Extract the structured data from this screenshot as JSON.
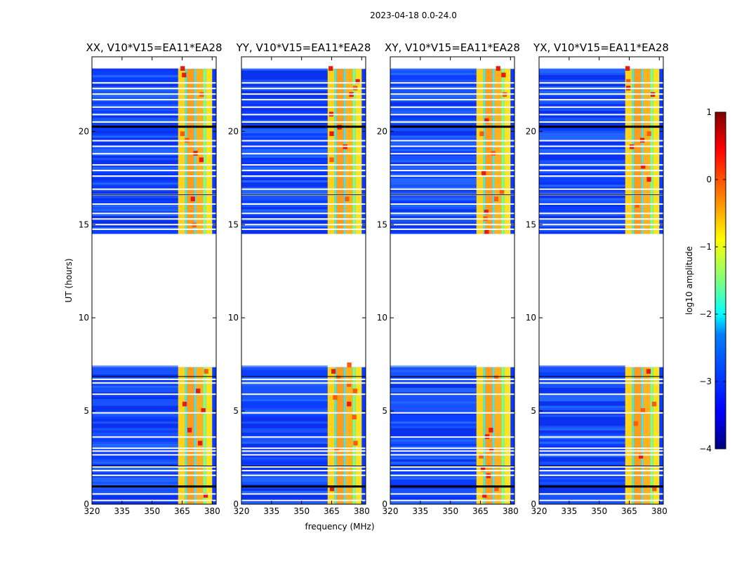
{
  "figure_title": "2023-04-18 0.0-24.0",
  "colors": {
    "background": "#ffffff",
    "jet_stops": [
      "#00007f",
      "#0000ff",
      "#007fff",
      "#00ffff",
      "#7fff7f",
      "#ffff00",
      "#ff7f00",
      "#ff0000",
      "#7f0000"
    ]
  },
  "chart_data": [
    {
      "type": "heatmap",
      "title": "XX, V10*V15=EA11*EA28",
      "xlabel": "",
      "ylabel": "UT (hours)",
      "xlim": [
        320,
        382
      ],
      "ylim": [
        0,
        24
      ],
      "xticks": [
        "320",
        "335",
        "350",
        "365",
        "380"
      ],
      "yticks": [
        "0",
        "5",
        "10",
        "15",
        "20"
      ],
      "data_gap_hours": [
        7.35,
        14.5
      ],
      "strong_band_mhz": [
        363,
        380
      ]
    },
    {
      "type": "heatmap",
      "title": "YY, V10*V15=EA11*EA28",
      "xlabel": "frequency (MHz)",
      "ylabel": "",
      "xlim": [
        320,
        382
      ],
      "ylim": [
        0,
        24
      ],
      "xticks": [
        "320",
        "335",
        "350",
        "365",
        "380"
      ],
      "yticks": [
        "0",
        "5",
        "10",
        "15",
        "20"
      ],
      "data_gap_hours": [
        7.35,
        14.5
      ],
      "strong_band_mhz": [
        363,
        380
      ]
    },
    {
      "type": "heatmap",
      "title": "XY, V10*V15=EA11*EA28",
      "xlabel": "",
      "ylabel": "",
      "xlim": [
        320,
        382
      ],
      "ylim": [
        0,
        24
      ],
      "xticks": [
        "320",
        "335",
        "350",
        "365",
        "380"
      ],
      "yticks": [
        "0",
        "5",
        "10",
        "15",
        "20"
      ],
      "data_gap_hours": [
        7.35,
        14.5
      ],
      "strong_band_mhz": [
        363,
        380
      ]
    },
    {
      "type": "heatmap",
      "title": "YX, V10*V15=EA11*EA28",
      "xlabel": "",
      "ylabel": "",
      "xlim": [
        320,
        382
      ],
      "ylim": [
        0,
        24
      ],
      "xticks": [
        "320",
        "335",
        "350",
        "365",
        "380"
      ],
      "yticks": [
        "0",
        "5",
        "10",
        "15",
        "20"
      ],
      "data_gap_hours": [
        7.35,
        14.5
      ],
      "strong_band_mhz": [
        363,
        380
      ]
    }
  ],
  "colorbar": {
    "label": "log$_{10}$ amplitude",
    "label_display": "log10 amplitude",
    "ticks": [
      "1",
      "0",
      "−1",
      "−2",
      "−3",
      "−4"
    ],
    "range": [
      -4,
      1
    ]
  }
}
